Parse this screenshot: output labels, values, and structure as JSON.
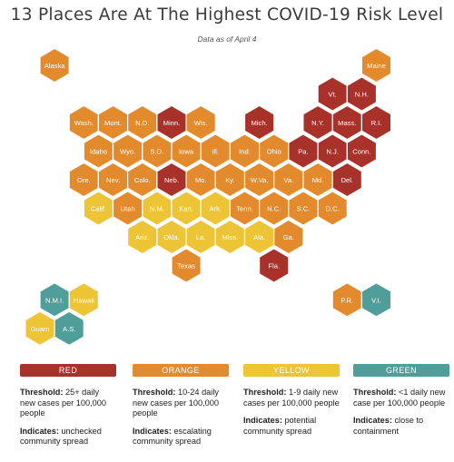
{
  "title": "13 Places Are At The Highest COVID-19 Risk Level",
  "subtitle": "Data as of April 4",
  "colors": {
    "red": "#a8322a",
    "orange": "#e38b2c",
    "yellow": "#ecc435",
    "green": "#4f9e9a"
  },
  "places": [
    {
      "label": "Alaska",
      "level": "orange",
      "col": 0.5,
      "row": 0
    },
    {
      "label": "Maine",
      "level": "orange",
      "col": 11.5,
      "row": 0
    },
    {
      "label": "Vt.",
      "level": "red",
      "col": 10,
      "row": 1
    },
    {
      "label": "N.H.",
      "level": "red",
      "col": 11,
      "row": 1
    },
    {
      "label": "Wash.",
      "level": "orange",
      "col": 1.5,
      "row": 2
    },
    {
      "label": "Mont.",
      "level": "orange",
      "col": 2.5,
      "row": 2
    },
    {
      "label": "N.D.",
      "level": "orange",
      "col": 3.5,
      "row": 2
    },
    {
      "label": "Minn.",
      "level": "red",
      "col": 4.5,
      "row": 2
    },
    {
      "label": "Wis.",
      "level": "orange",
      "col": 5.5,
      "row": 2
    },
    {
      "label": "Mich.",
      "level": "red",
      "col": 7.5,
      "row": 2
    },
    {
      "label": "N.Y.",
      "level": "red",
      "col": 9.5,
      "row": 2
    },
    {
      "label": "Mass.",
      "level": "red",
      "col": 10.5,
      "row": 2
    },
    {
      "label": "R.I.",
      "level": "red",
      "col": 11.5,
      "row": 2
    },
    {
      "label": "Idaho",
      "level": "orange",
      "col": 2,
      "row": 3
    },
    {
      "label": "Wyo.",
      "level": "orange",
      "col": 3,
      "row": 3
    },
    {
      "label": "S.D.",
      "level": "orange",
      "col": 4,
      "row": 3
    },
    {
      "label": "Iowa",
      "level": "orange",
      "col": 5,
      "row": 3
    },
    {
      "label": "Ill.",
      "level": "orange",
      "col": 6,
      "row": 3
    },
    {
      "label": "Ind.",
      "level": "orange",
      "col": 7,
      "row": 3
    },
    {
      "label": "Ohio",
      "level": "orange",
      "col": 8,
      "row": 3
    },
    {
      "label": "Pa.",
      "level": "red",
      "col": 9,
      "row": 3
    },
    {
      "label": "N.J.",
      "level": "red",
      "col": 10,
      "row": 3
    },
    {
      "label": "Conn.",
      "level": "red",
      "col": 11,
      "row": 3
    },
    {
      "label": "Ore.",
      "level": "orange",
      "col": 1.5,
      "row": 4
    },
    {
      "label": "Nev.",
      "level": "orange",
      "col": 2.5,
      "row": 4
    },
    {
      "label": "Colo.",
      "level": "orange",
      "col": 3.5,
      "row": 4
    },
    {
      "label": "Neb.",
      "level": "red",
      "col": 4.5,
      "row": 4
    },
    {
      "label": "Mo.",
      "level": "orange",
      "col": 5.5,
      "row": 4
    },
    {
      "label": "Ky.",
      "level": "orange",
      "col": 6.5,
      "row": 4
    },
    {
      "label": "W.Va.",
      "level": "orange",
      "col": 7.5,
      "row": 4
    },
    {
      "label": "Va.",
      "level": "orange",
      "col": 8.5,
      "row": 4
    },
    {
      "label": "Md.",
      "level": "orange",
      "col": 9.5,
      "row": 4
    },
    {
      "label": "Del.",
      "level": "red",
      "col": 10.5,
      "row": 4
    },
    {
      "label": "Calif.",
      "level": "yellow",
      "col": 2,
      "row": 5
    },
    {
      "label": "Utah",
      "level": "orange",
      "col": 3,
      "row": 5
    },
    {
      "label": "N.M.",
      "level": "yellow",
      "col": 4,
      "row": 5
    },
    {
      "label": "Kan.",
      "level": "yellow",
      "col": 5,
      "row": 5
    },
    {
      "label": "Ark.",
      "level": "yellow",
      "col": 6,
      "row": 5
    },
    {
      "label": "Tenn.",
      "level": "orange",
      "col": 7,
      "row": 5
    },
    {
      "label": "N.C.",
      "level": "orange",
      "col": 8,
      "row": 5
    },
    {
      "label": "S.C.",
      "level": "orange",
      "col": 9,
      "row": 5
    },
    {
      "label": "D.C.",
      "level": "orange",
      "col": 10,
      "row": 5
    },
    {
      "label": "Ariz.",
      "level": "yellow",
      "col": 3.5,
      "row": 6
    },
    {
      "label": "Okla.",
      "level": "yellow",
      "col": 4.5,
      "row": 6
    },
    {
      "label": "La.",
      "level": "yellow",
      "col": 5.5,
      "row": 6
    },
    {
      "label": "Miss.",
      "level": "yellow",
      "col": 6.5,
      "row": 6
    },
    {
      "label": "Ala.",
      "level": "yellow",
      "col": 7.5,
      "row": 6
    },
    {
      "label": "Ga.",
      "level": "orange",
      "col": 8.5,
      "row": 6
    },
    {
      "label": "Texas",
      "level": "orange",
      "col": 5,
      "row": 7
    },
    {
      "label": "Fla.",
      "level": "red",
      "col": 8,
      "row": 7
    },
    {
      "label": "N.M.I.",
      "level": "green",
      "col": 0.5,
      "row": 8.2
    },
    {
      "label": "Hawaii",
      "level": "yellow",
      "col": 1.5,
      "row": 8.2
    },
    {
      "label": "Guam",
      "level": "yellow",
      "col": 0,
      "row": 9.2
    },
    {
      "label": "A.S.",
      "level": "green",
      "col": 1,
      "row": 9.2
    },
    {
      "label": "P.R.",
      "level": "orange",
      "col": 10.5,
      "row": 8.2
    },
    {
      "label": "V.I.",
      "level": "green",
      "col": 11.5,
      "row": 8.2
    }
  ],
  "legend": [
    {
      "key": "red",
      "label": "RED",
      "threshold_label": "Threshold:",
      "threshold_text": "25+ daily new cases per 100,000 people",
      "indicates_label": "Indicates:",
      "indicates_text": "unchecked community spread"
    },
    {
      "key": "orange",
      "label": "ORANGE",
      "threshold_label": "Threshold:",
      "threshold_text": "10-24 daily new cases per 100,000 people",
      "indicates_label": "Indicates:",
      "indicates_text": "escalating community spread"
    },
    {
      "key": "yellow",
      "label": "YELLOW",
      "threshold_label": "Threshold:",
      "threshold_text": "1-9 daily new cases per 100,000 people",
      "indicates_label": "Indicates:",
      "indicates_text": "potential community spread"
    },
    {
      "key": "green",
      "label": "GREEN",
      "threshold_label": "Threshold:",
      "threshold_text": "<1 daily new case per 100,000 people",
      "indicates_label": "Indicates:",
      "indicates_text": "close to containment"
    }
  ]
}
